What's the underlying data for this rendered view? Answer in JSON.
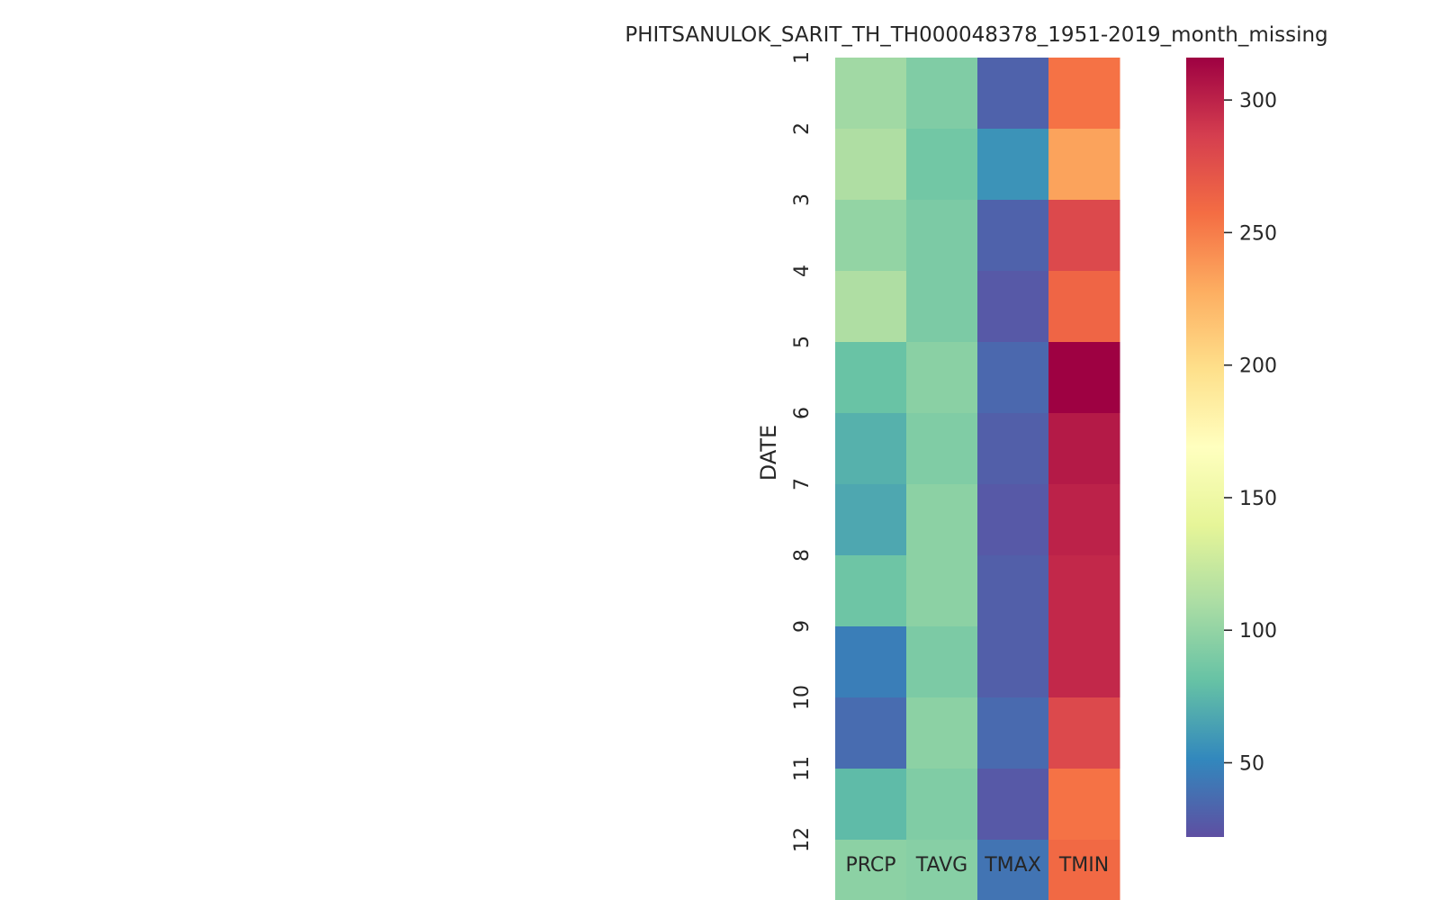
{
  "chart_data": {
    "type": "heatmap",
    "title": "PHITSANULOK_SARIT_TH_TH000048378_1951-2019_month_missing",
    "ylabel": "DATE",
    "xlabel": "",
    "x_categories": [
      "PRCP",
      "TAVG",
      "TMAX",
      "TMIN"
    ],
    "y_categories": [
      "1",
      "2",
      "3",
      "4",
      "5",
      "6",
      "7",
      "8",
      "9",
      "10",
      "11",
      "12"
    ],
    "values": [
      [
        106,
        92,
        32,
        255
      ],
      [
        112,
        86,
        57,
        233
      ],
      [
        100,
        90,
        32,
        280
      ],
      [
        112,
        90,
        27,
        262
      ],
      [
        82,
        96,
        35,
        316
      ],
      [
        72,
        92,
        30,
        304
      ],
      [
        67,
        97,
        27,
        300
      ],
      [
        84,
        97,
        30,
        297
      ],
      [
        46,
        90,
        30,
        297
      ],
      [
        37,
        97,
        36,
        280
      ],
      [
        77,
        92,
        27,
        255
      ],
      [
        97,
        95,
        41,
        260
      ]
    ],
    "colormap": "Spectral_r",
    "colorbar": {
      "min": 22,
      "max": 316,
      "ticks": [
        50,
        100,
        150,
        200,
        250,
        300
      ]
    }
  }
}
